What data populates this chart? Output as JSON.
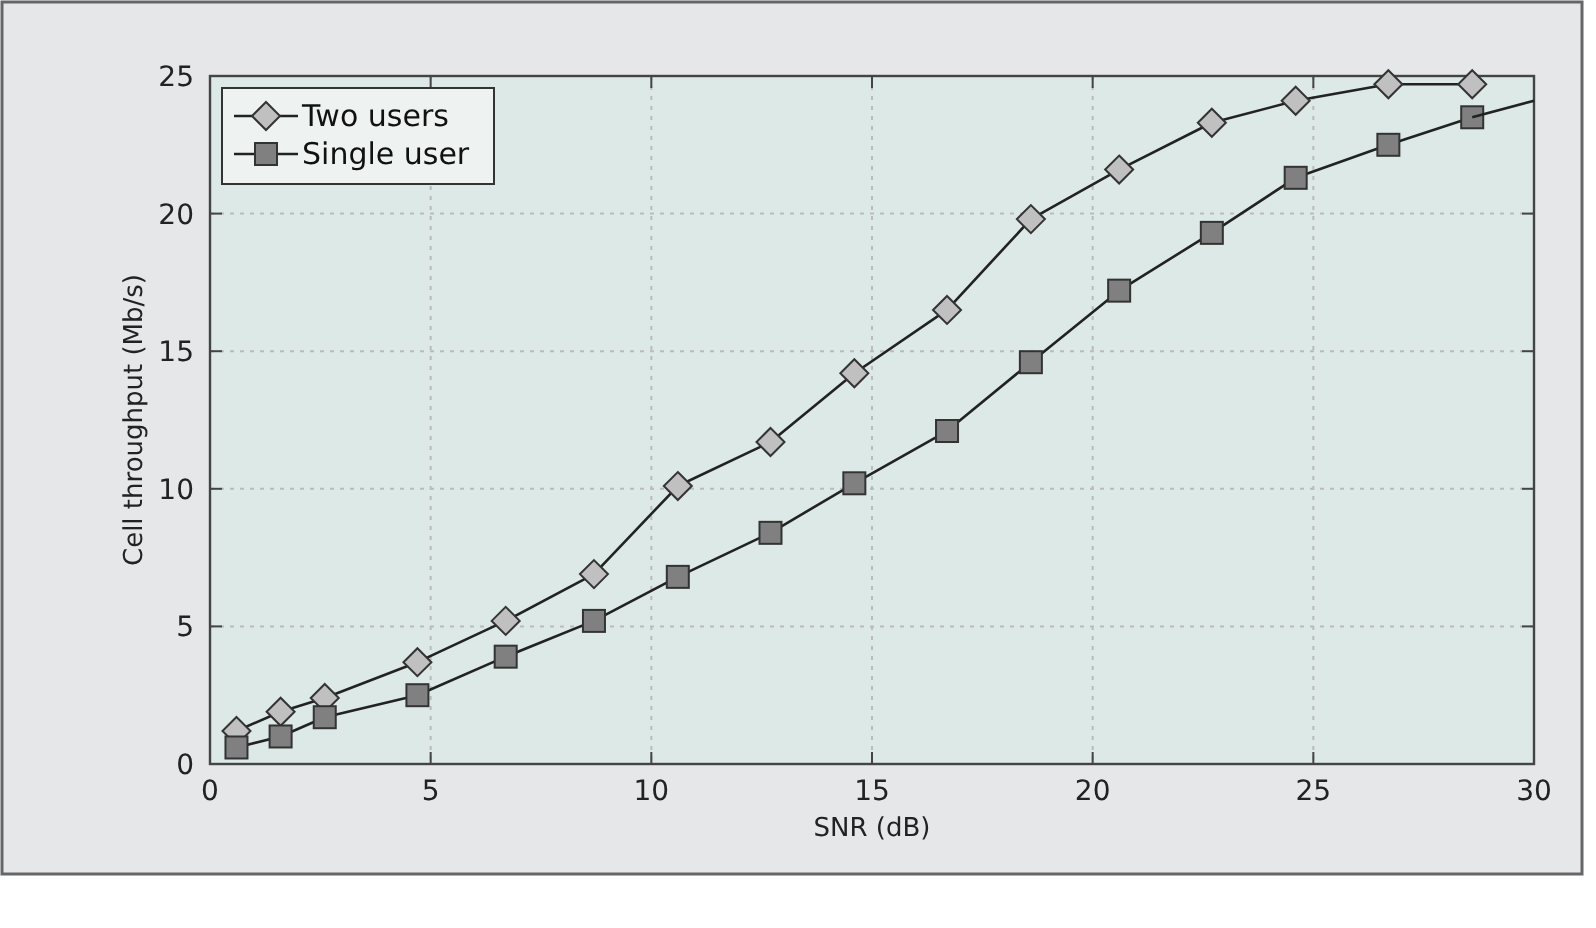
{
  "chart_data": {
    "type": "line",
    "xlabel": "SNR (dB)",
    "ylabel": "Cell throughput (Mb/s)",
    "x": [
      0.6,
      1.6,
      2.6,
      4.7,
      6.7,
      8.7,
      10.6,
      12.7,
      14.6,
      16.7,
      18.6,
      20.6,
      22.7,
      24.6,
      26.7,
      28.6
    ],
    "series": [
      {
        "name": "Two users",
        "color": "#c0c0c0",
        "marker": "diamond",
        "values": [
          1.2,
          1.9,
          2.4,
          3.7,
          5.2,
          6.9,
          10.1,
          11.7,
          14.2,
          16.5,
          19.8,
          21.6,
          23.3,
          24.1,
          24.7,
          24.7
        ]
      },
      {
        "name": "Single user",
        "color": "#808080",
        "marker": "square",
        "values": [
          0.6,
          1.0,
          1.7,
          2.5,
          3.9,
          5.2,
          6.8,
          8.4,
          10.2,
          12.1,
          14.6,
          17.2,
          19.3,
          21.3,
          22.5,
          23.5
        ]
      },
      {
        "color": "#222222",
        "marker": "none",
        "x": [
          28.6,
          30
        ],
        "values": [
          23.5,
          24.1
        ]
      }
    ],
    "xlim": [
      0,
      30
    ],
    "ylim": [
      0,
      25
    ],
    "xticks": [
      0,
      5,
      10,
      15,
      20,
      25,
      30
    ],
    "yticks": [
      0,
      5,
      10,
      15,
      20,
      25
    ],
    "grid": true,
    "legend": "top left",
    "line_style": "solid"
  }
}
